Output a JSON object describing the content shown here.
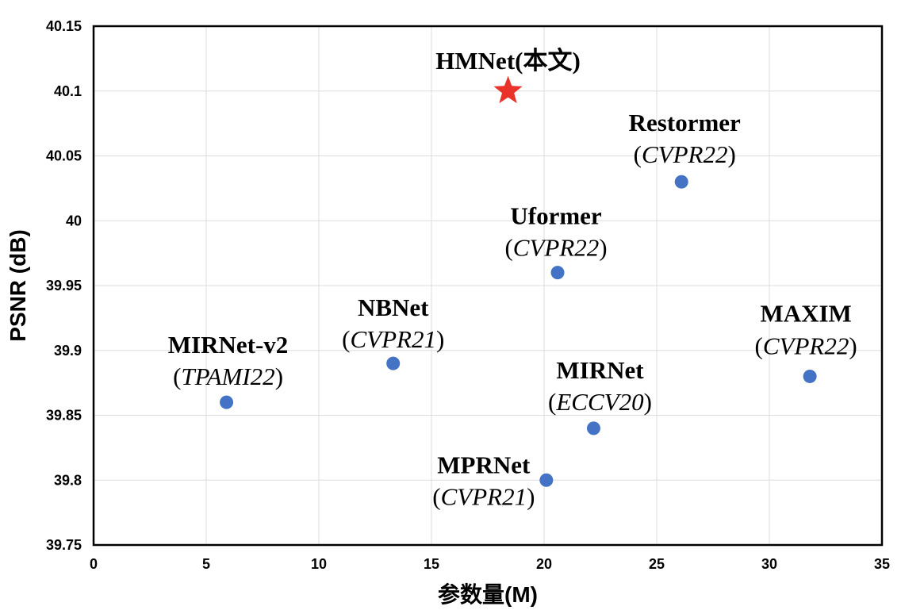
{
  "chart_data": {
    "type": "scatter",
    "xlabel": "参数量(M)",
    "ylabel": "PSNR (dB)",
    "xlim": [
      0,
      35
    ],
    "ylim": [
      39.75,
      40.15
    ],
    "x_ticks": [
      "0",
      "5",
      "10",
      "15",
      "20",
      "25",
      "30",
      "35"
    ],
    "y_ticks": [
      "39.75",
      "39.8",
      "39.85",
      "39.9",
      "39.95",
      "40",
      "40.05",
      "40.1",
      "40.15"
    ],
    "grid": true,
    "points": [
      {
        "name": "HMNet(本文)",
        "venue": "",
        "x": 18.4,
        "y": 40.1,
        "marker": "star",
        "color": "#e8322a"
      },
      {
        "name": "Restormer",
        "venue": "CVPR22",
        "x": 26.1,
        "y": 40.03,
        "marker": "circle",
        "color": "#4472c4"
      },
      {
        "name": "Uformer",
        "venue": "CVPR22",
        "x": 20.6,
        "y": 39.96,
        "marker": "circle",
        "color": "#4472c4"
      },
      {
        "name": "NBNet",
        "venue": "CVPR21",
        "x": 13.3,
        "y": 39.89,
        "marker": "circle",
        "color": "#4472c4"
      },
      {
        "name": "MIRNet-v2",
        "venue": "TPAMI22",
        "x": 5.9,
        "y": 39.86,
        "marker": "circle",
        "color": "#4472c4"
      },
      {
        "name": "MAXIM",
        "venue": "CVPR22",
        "x": 31.8,
        "y": 39.88,
        "marker": "circle",
        "color": "#4472c4"
      },
      {
        "name": "MIRNet",
        "venue": "ECCV20",
        "x": 22.2,
        "y": 39.84,
        "marker": "circle",
        "color": "#4472c4"
      },
      {
        "name": "MPRNet",
        "venue": "CVPR21",
        "x": 20.1,
        "y": 39.8,
        "marker": "circle",
        "color": "#4472c4"
      }
    ]
  }
}
